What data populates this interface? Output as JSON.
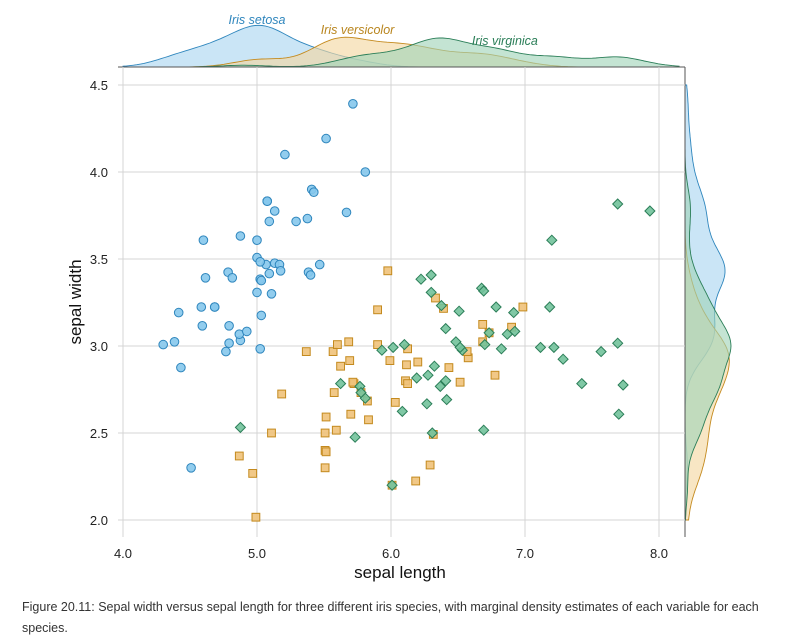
{
  "caption": "Figure 20.11: Sepal width versus sepal length for three different iris species, with marginal density estimates of each variable for each species.",
  "chart_data": {
    "type": "scatter",
    "title": "",
    "xlabel": "sepal length",
    "ylabel": "sepal width",
    "xlim": [
      3.9,
      8.25
    ],
    "ylim": [
      1.92,
      4.57
    ],
    "xticks": [
      "4.0",
      "5.0",
      "6.0",
      "7.0",
      "8.0"
    ],
    "yticks": [
      "2.0",
      "2.5",
      "3.0",
      "3.5",
      "4.0",
      "4.5"
    ],
    "grid": true,
    "marginal_density": true,
    "series": [
      {
        "name": "Iris setosa",
        "marker": "circle",
        "fill": "#86c8ec",
        "stroke": "#2f86bd",
        "density_fill": "#a9d5f0",
        "label_color": "#2f86bd",
        "points": [
          [
            5.1,
            3.5
          ],
          [
            4.9,
            3.0
          ],
          [
            4.7,
            3.2
          ],
          [
            4.6,
            3.1
          ],
          [
            5.0,
            3.6
          ],
          [
            5.4,
            3.9
          ],
          [
            4.6,
            3.4
          ],
          [
            5.0,
            3.4
          ],
          [
            4.4,
            2.9
          ],
          [
            4.9,
            3.1
          ],
          [
            5.4,
            3.7
          ],
          [
            4.8,
            3.4
          ],
          [
            4.8,
            3.0
          ],
          [
            4.3,
            3.0
          ],
          [
            5.8,
            4.0
          ],
          [
            5.7,
            4.4
          ],
          [
            5.4,
            3.9
          ],
          [
            5.1,
            3.5
          ],
          [
            5.7,
            3.8
          ],
          [
            5.1,
            3.8
          ],
          [
            5.4,
            3.4
          ],
          [
            5.1,
            3.7
          ],
          [
            4.6,
            3.6
          ],
          [
            5.1,
            3.3
          ],
          [
            4.8,
            3.4
          ],
          [
            5.0,
            3.0
          ],
          [
            5.0,
            3.4
          ],
          [
            5.2,
            3.5
          ],
          [
            5.2,
            3.4
          ],
          [
            4.7,
            3.2
          ],
          [
            4.8,
            3.1
          ],
          [
            5.4,
            3.4
          ],
          [
            5.2,
            4.1
          ],
          [
            5.5,
            4.2
          ],
          [
            4.9,
            3.1
          ],
          [
            5.0,
            3.2
          ],
          [
            5.5,
            3.5
          ],
          [
            4.9,
            3.6
          ],
          [
            4.4,
            3.0
          ],
          [
            5.1,
            3.4
          ],
          [
            5.0,
            3.5
          ],
          [
            4.5,
            2.3
          ],
          [
            4.4,
            3.2
          ],
          [
            5.0,
            3.5
          ],
          [
            5.1,
            3.8
          ],
          [
            4.8,
            3.0
          ],
          [
            5.1,
            3.8
          ],
          [
            4.6,
            3.2
          ],
          [
            5.3,
            3.7
          ],
          [
            5.0,
            3.3
          ]
        ]
      },
      {
        "name": "Iris versicolor",
        "marker": "square",
        "fill": "#f0c27a",
        "stroke": "#c48a1e",
        "density_fill": "#f3d7a0",
        "label_color": "#b9861f",
        "points": [
          [
            7.0,
            3.2
          ],
          [
            6.4,
            3.2
          ],
          [
            6.9,
            3.1
          ],
          [
            5.5,
            2.3
          ],
          [
            6.5,
            2.8
          ],
          [
            5.7,
            2.8
          ],
          [
            6.3,
            3.3
          ],
          [
            4.9,
            2.4
          ],
          [
            6.6,
            2.9
          ],
          [
            5.2,
            2.7
          ],
          [
            5.0,
            2.0
          ],
          [
            5.9,
            3.0
          ],
          [
            6.0,
            2.2
          ],
          [
            6.1,
            2.9
          ],
          [
            5.6,
            2.9
          ],
          [
            6.7,
            3.1
          ],
          [
            5.6,
            3.0
          ],
          [
            5.8,
            2.7
          ],
          [
            6.2,
            2.2
          ],
          [
            5.6,
            2.5
          ],
          [
            5.9,
            3.2
          ],
          [
            6.1,
            2.8
          ],
          [
            6.3,
            2.5
          ],
          [
            6.1,
            2.8
          ],
          [
            6.4,
            2.9
          ],
          [
            6.6,
            3.0
          ],
          [
            6.8,
            2.8
          ],
          [
            6.7,
            3.0
          ],
          [
            6.0,
            2.9
          ],
          [
            5.7,
            2.6
          ],
          [
            5.5,
            2.4
          ],
          [
            5.5,
            2.4
          ],
          [
            5.8,
            2.7
          ],
          [
            6.0,
            2.7
          ],
          [
            5.4,
            3.0
          ],
          [
            6.0,
            3.4
          ],
          [
            6.7,
            3.1
          ],
          [
            6.3,
            2.3
          ],
          [
            5.6,
            3.0
          ],
          [
            5.5,
            2.5
          ],
          [
            5.5,
            2.6
          ],
          [
            6.1,
            3.0
          ],
          [
            5.8,
            2.6
          ],
          [
            5.0,
            2.3
          ],
          [
            5.6,
            2.7
          ],
          [
            5.7,
            3.0
          ],
          [
            5.7,
            2.9
          ],
          [
            6.2,
            2.9
          ],
          [
            5.1,
            2.5
          ],
          [
            5.7,
            2.8
          ]
        ]
      },
      {
        "name": "Iris virginica",
        "marker": "diamond",
        "fill": "#72c29b",
        "stroke": "#2b7e58",
        "density_fill": "#9fd3b8",
        "label_color": "#2b7e58",
        "points": [
          [
            6.3,
            3.3
          ],
          [
            5.8,
            2.7
          ],
          [
            7.1,
            3.0
          ],
          [
            6.3,
            2.9
          ],
          [
            6.5,
            3.0
          ],
          [
            7.6,
            3.0
          ],
          [
            4.9,
            2.5
          ],
          [
            7.3,
            2.9
          ],
          [
            6.7,
            2.5
          ],
          [
            7.2,
            3.6
          ],
          [
            6.5,
            3.2
          ],
          [
            6.4,
            2.7
          ],
          [
            6.8,
            3.0
          ],
          [
            5.7,
            2.5
          ],
          [
            5.8,
            2.8
          ],
          [
            6.4,
            3.2
          ],
          [
            6.5,
            3.0
          ],
          [
            7.7,
            3.8
          ],
          [
            7.7,
            2.6
          ],
          [
            6.0,
            2.2
          ],
          [
            6.9,
            3.2
          ],
          [
            5.6,
            2.8
          ],
          [
            7.7,
            2.8
          ],
          [
            6.3,
            2.7
          ],
          [
            6.7,
            3.3
          ],
          [
            7.2,
            3.2
          ],
          [
            6.2,
            2.8
          ],
          [
            6.1,
            3.0
          ],
          [
            6.4,
            2.8
          ],
          [
            7.2,
            3.0
          ],
          [
            7.4,
            2.8
          ],
          [
            7.9,
            3.8
          ],
          [
            6.4,
            2.8
          ],
          [
            6.3,
            2.8
          ],
          [
            6.1,
            2.6
          ],
          [
            7.7,
            3.0
          ],
          [
            6.3,
            3.4
          ],
          [
            6.4,
            3.1
          ],
          [
            6.0,
            3.0
          ],
          [
            6.9,
            3.1
          ],
          [
            6.7,
            3.1
          ],
          [
            6.9,
            3.1
          ],
          [
            5.8,
            2.7
          ],
          [
            6.8,
            3.2
          ],
          [
            6.7,
            3.3
          ],
          [
            6.7,
            3.0
          ],
          [
            6.3,
            2.5
          ],
          [
            6.5,
            3.0
          ],
          [
            6.2,
            3.4
          ],
          [
            5.9,
            3.0
          ]
        ]
      }
    ]
  }
}
